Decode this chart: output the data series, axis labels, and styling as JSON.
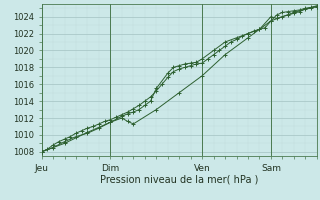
{
  "bg_color": "#cce8e8",
  "grid_major_color": "#aac8c8",
  "grid_minor_color": "#c0dada",
  "line_color": "#2d6030",
  "marker_color": "#2d6030",
  "xlabel": "Pression niveau de la mer( hPa )",
  "ylim": [
    1007.5,
    1025.5
  ],
  "yticks": [
    1008,
    1010,
    1012,
    1014,
    1016,
    1018,
    1020,
    1022,
    1024
  ],
  "day_labels": [
    "Jeu",
    "Dim",
    "Ven",
    "Sam"
  ],
  "day_positions": [
    0,
    72,
    168,
    240
  ],
  "xmax": 288,
  "series1": [
    [
      0,
      1008
    ],
    [
      6,
      1008.3
    ],
    [
      12,
      1008.8
    ],
    [
      18,
      1009.2
    ],
    [
      24,
      1009.5
    ],
    [
      30,
      1009.8
    ],
    [
      36,
      1010.2
    ],
    [
      42,
      1010.5
    ],
    [
      48,
      1010.8
    ],
    [
      54,
      1011.0
    ],
    [
      60,
      1011.3
    ],
    [
      66,
      1011.6
    ],
    [
      72,
      1011.8
    ],
    [
      78,
      1012.1
    ],
    [
      84,
      1012.4
    ],
    [
      90,
      1012.7
    ],
    [
      96,
      1013.1
    ],
    [
      102,
      1013.5
    ],
    [
      108,
      1014.0
    ],
    [
      114,
      1014.5
    ],
    [
      120,
      1015.2
    ],
    [
      126,
      1016.0
    ],
    [
      132,
      1016.8
    ],
    [
      138,
      1017.5
    ],
    [
      144,
      1017.8
    ],
    [
      150,
      1018.0
    ],
    [
      156,
      1018.2
    ],
    [
      162,
      1018.4
    ],
    [
      168,
      1018.5
    ],
    [
      174,
      1019.0
    ],
    [
      180,
      1019.5
    ],
    [
      186,
      1020.0
    ],
    [
      192,
      1020.5
    ],
    [
      198,
      1021.0
    ],
    [
      204,
      1021.3
    ],
    [
      210,
      1021.7
    ],
    [
      216,
      1022.0
    ],
    [
      222,
      1022.3
    ],
    [
      228,
      1022.5
    ],
    [
      234,
      1022.7
    ],
    [
      240,
      1023.5
    ],
    [
      246,
      1024.2
    ],
    [
      252,
      1024.5
    ],
    [
      258,
      1024.6
    ],
    [
      264,
      1024.7
    ],
    [
      270,
      1024.8
    ],
    [
      276,
      1025.0
    ],
    [
      282,
      1025.1
    ],
    [
      288,
      1025.2
    ]
  ],
  "series2": [
    [
      0,
      1008
    ],
    [
      12,
      1008.5
    ],
    [
      24,
      1009.2
    ],
    [
      36,
      1009.8
    ],
    [
      48,
      1010.2
    ],
    [
      60,
      1010.8
    ],
    [
      72,
      1011.5
    ],
    [
      84,
      1012.2
    ],
    [
      90,
      1012.5
    ],
    [
      96,
      1012.7
    ],
    [
      102,
      1013.0
    ],
    [
      108,
      1013.5
    ],
    [
      114,
      1014.0
    ],
    [
      120,
      1015.5
    ],
    [
      132,
      1017.3
    ],
    [
      138,
      1018.0
    ],
    [
      144,
      1018.2
    ],
    [
      150,
      1018.4
    ],
    [
      156,
      1018.5
    ],
    [
      162,
      1018.6
    ],
    [
      168,
      1019.0
    ],
    [
      180,
      1020.0
    ],
    [
      192,
      1021.0
    ],
    [
      204,
      1021.5
    ],
    [
      216,
      1022.0
    ],
    [
      228,
      1022.5
    ],
    [
      240,
      1024.0
    ],
    [
      246,
      1023.8
    ],
    [
      252,
      1024.0
    ],
    [
      258,
      1024.2
    ],
    [
      264,
      1024.4
    ],
    [
      270,
      1024.6
    ],
    [
      276,
      1024.9
    ],
    [
      282,
      1025.0
    ],
    [
      288,
      1025.2
    ]
  ],
  "series3": [
    [
      0,
      1008
    ],
    [
      24,
      1009.0
    ],
    [
      48,
      1010.3
    ],
    [
      72,
      1011.5
    ],
    [
      84,
      1012.0
    ],
    [
      90,
      1011.6
    ],
    [
      96,
      1011.3
    ],
    [
      120,
      1013.0
    ],
    [
      144,
      1015.0
    ],
    [
      168,
      1017.0
    ],
    [
      192,
      1019.5
    ],
    [
      216,
      1021.5
    ],
    [
      240,
      1023.5
    ],
    [
      264,
      1024.5
    ],
    [
      288,
      1025.3
    ]
  ]
}
